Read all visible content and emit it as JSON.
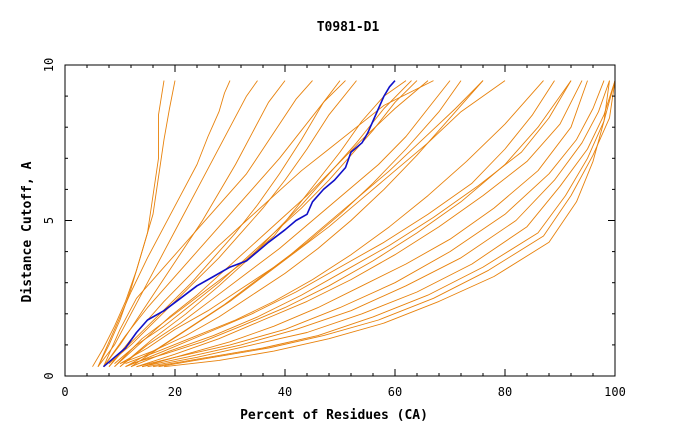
{
  "chart_data": {
    "type": "line",
    "title": "T0981-D1",
    "xlabel": "Percent of Residues (CA)",
    "ylabel": "Distance Cutoff, A",
    "xlim": [
      0,
      100
    ],
    "ylim": [
      0,
      10
    ],
    "xticks": [
      "0",
      "20",
      "40",
      "60",
      "80",
      "100"
    ],
    "yticks": [
      "0",
      "5",
      "10"
    ],
    "grid": false,
    "colors": {
      "models": "#e8820c",
      "highlight": "#1010c8"
    },
    "series": [
      {
        "color": "#1010c8",
        "highlight": true,
        "x": [
          7,
          9,
          11,
          13,
          15,
          18,
          21,
          24,
          27,
          30,
          33,
          35,
          37,
          40,
          42,
          44,
          45,
          47,
          49,
          51,
          52,
          54,
          55,
          56,
          57,
          58,
          59,
          60
        ],
        "y": [
          0.3,
          0.6,
          0.9,
          1.4,
          1.8,
          2.1,
          2.5,
          2.9,
          3.2,
          3.5,
          3.7,
          4.0,
          4.3,
          4.7,
          5.0,
          5.2,
          5.6,
          6.0,
          6.3,
          6.7,
          7.2,
          7.5,
          7.8,
          8.2,
          8.6,
          9.0,
          9.3,
          9.5
        ]
      },
      {
        "color": "#e8820c",
        "x": [
          5,
          7,
          9,
          11,
          13,
          15,
          16,
          17,
          17,
          18
        ],
        "y": [
          0.3,
          0.9,
          1.6,
          2.4,
          3.4,
          4.6,
          5.8,
          7.0,
          8.4,
          9.5
        ]
      },
      {
        "color": "#e8820c",
        "x": [
          6,
          8,
          10,
          12,
          14,
          16,
          17,
          18,
          19,
          20
        ],
        "y": [
          0.3,
          1.0,
          1.8,
          2.8,
          4.0,
          5.2,
          6.4,
          7.6,
          8.6,
          9.5
        ]
      },
      {
        "color": "#e8820c",
        "x": [
          6,
          9,
          12,
          15,
          18,
          21,
          24,
          27,
          30,
          33,
          35
        ],
        "y": [
          0.3,
          1.0,
          2.0,
          3.0,
          4.0,
          5.0,
          6.0,
          7.0,
          8.0,
          9.0,
          9.5
        ]
      },
      {
        "color": "#e8820c",
        "x": [
          7,
          10,
          13,
          16,
          19,
          22,
          25,
          28,
          31,
          34,
          37,
          40
        ],
        "y": [
          0.3,
          1.0,
          1.8,
          2.6,
          3.4,
          4.2,
          5.0,
          5.9,
          6.8,
          7.8,
          8.8,
          9.5
        ]
      },
      {
        "color": "#e8820c",
        "x": [
          8,
          11,
          15,
          19,
          23,
          27,
          31,
          35,
          39,
          43,
          47,
          50
        ],
        "y": [
          0.3,
          0.9,
          1.6,
          2.3,
          3.0,
          3.8,
          4.6,
          5.5,
          6.5,
          7.6,
          8.8,
          9.5
        ]
      },
      {
        "color": "#e8820c",
        "x": [
          8,
          12,
          16,
          20,
          24,
          28,
          32,
          36,
          40,
          44,
          48,
          53
        ],
        "y": [
          0.4,
          1.0,
          1.7,
          2.4,
          3.1,
          3.8,
          4.6,
          5.4,
          6.3,
          7.3,
          8.4,
          9.5
        ]
      },
      {
        "color": "#e8820c",
        "x": [
          9,
          13,
          18,
          23,
          28,
          33,
          38,
          43,
          48,
          53,
          58,
          63
        ],
        "y": [
          0.4,
          1.0,
          1.6,
          2.3,
          3.0,
          3.8,
          4.6,
          5.5,
          6.5,
          7.5,
          8.6,
          9.5
        ]
      },
      {
        "color": "#e8820c",
        "x": [
          10,
          15,
          20,
          26,
          32,
          38,
          44,
          50,
          56,
          62,
          68,
          72
        ],
        "y": [
          0.4,
          0.9,
          1.5,
          2.1,
          2.8,
          3.5,
          4.3,
          5.2,
          6.2,
          7.3,
          8.5,
          9.5
        ]
      },
      {
        "color": "#e8820c",
        "x": [
          10,
          16,
          22,
          28,
          34,
          40,
          46,
          52,
          58,
          64,
          70,
          76
        ],
        "y": [
          0.4,
          0.8,
          1.3,
          1.9,
          2.6,
          3.3,
          4.1,
          5.0,
          6.0,
          7.1,
          8.3,
          9.5
        ]
      },
      {
        "color": "#e8820c",
        "x": [
          11,
          17,
          24,
          31,
          38,
          45,
          52,
          59,
          66,
          73,
          80,
          87
        ],
        "y": [
          0.4,
          0.8,
          1.3,
          1.8,
          2.4,
          3.1,
          3.9,
          4.8,
          5.8,
          6.9,
          8.1,
          9.5
        ]
      },
      {
        "color": "#e8820c",
        "x": [
          12,
          18,
          25,
          32,
          40,
          48,
          56,
          64,
          72,
          80,
          86,
          92
        ],
        "y": [
          0.4,
          0.7,
          1.1,
          1.6,
          2.2,
          2.9,
          3.7,
          4.6,
          5.6,
          6.8,
          8.0,
          9.5
        ]
      },
      {
        "color": "#e8820c",
        "x": [
          9,
          14,
          20,
          26,
          32,
          38,
          42,
          46,
          50,
          54,
          58,
          62
        ],
        "y": [
          0.3,
          1.2,
          2.0,
          2.8,
          3.6,
          4.5,
          5.4,
          6.3,
          7.2,
          8.2,
          9.0,
          9.5
        ]
      },
      {
        "color": "#e8820c",
        "x": [
          9,
          14,
          19,
          24,
          29,
          34,
          39,
          44,
          49,
          54,
          60,
          66
        ],
        "y": [
          0.3,
          1.1,
          1.9,
          2.6,
          3.4,
          4.2,
          5.0,
          5.8,
          6.7,
          7.6,
          8.6,
          9.5
        ]
      },
      {
        "color": "#e8820c",
        "x": [
          8,
          13,
          18,
          23,
          28,
          33,
          38,
          43,
          48,
          53,
          58,
          67
        ],
        "y": [
          0.3,
          1.4,
          2.4,
          3.3,
          4.2,
          5.0,
          5.8,
          6.6,
          7.3,
          8.0,
          8.7,
          9.5
        ]
      },
      {
        "color": "#e8820c",
        "x": [
          13,
          20,
          30,
          40,
          50,
          60,
          70,
          80,
          88,
          93,
          96,
          98
        ],
        "y": [
          0.3,
          0.6,
          1.0,
          1.5,
          2.2,
          3.0,
          4.0,
          5.2,
          6.5,
          7.6,
          8.6,
          9.5
        ]
      },
      {
        "color": "#e8820c",
        "x": [
          14,
          22,
          32,
          42,
          52,
          62,
          72,
          82,
          89,
          94,
          97,
          99
        ],
        "y": [
          0.3,
          0.6,
          1.0,
          1.5,
          2.1,
          2.9,
          3.8,
          5.0,
          6.3,
          7.5,
          8.5,
          9.5
        ]
      },
      {
        "color": "#e8820c",
        "x": [
          15,
          24,
          34,
          44,
          54,
          64,
          74,
          84,
          90,
          95,
          98,
          100
        ],
        "y": [
          0.3,
          0.6,
          1.0,
          1.4,
          2.0,
          2.7,
          3.6,
          4.8,
          6.1,
          7.3,
          8.4,
          9.5
        ]
      },
      {
        "color": "#e8820c",
        "x": [
          16,
          26,
          36,
          46,
          56,
          66,
          76,
          86,
          91,
          95,
          98,
          100
        ],
        "y": [
          0.3,
          0.6,
          0.9,
          1.3,
          1.9,
          2.6,
          3.5,
          4.6,
          5.8,
          7.0,
          8.2,
          9.5
        ]
      },
      {
        "color": "#e8820c",
        "x": [
          14,
          22,
          30,
          38,
          46,
          54,
          62,
          70,
          78,
          86,
          92,
          95
        ],
        "y": [
          0.3,
          0.7,
          1.1,
          1.6,
          2.2,
          2.9,
          3.6,
          4.4,
          5.4,
          6.6,
          8.0,
          9.5
        ]
      },
      {
        "color": "#e8820c",
        "x": [
          13,
          20,
          28,
          36,
          44,
          52,
          60,
          68,
          76,
          84,
          90,
          94
        ],
        "y": [
          0.3,
          0.7,
          1.2,
          1.8,
          2.4,
          3.1,
          3.9,
          4.8,
          5.8,
          6.9,
          8.1,
          9.5
        ]
      },
      {
        "color": "#e8820c",
        "x": [
          12,
          19,
          27,
          35,
          43,
          51,
          59,
          67,
          75,
          83,
          88,
          92
        ],
        "y": [
          0.3,
          0.8,
          1.3,
          1.9,
          2.6,
          3.4,
          4.2,
          5.1,
          6.1,
          7.2,
          8.3,
          9.5
        ]
      },
      {
        "color": "#e8820c",
        "x": [
          17,
          27,
          37,
          47,
          57,
          67,
          77,
          87,
          92,
          96,
          99,
          100
        ],
        "y": [
          0.3,
          0.6,
          0.9,
          1.3,
          1.8,
          2.5,
          3.4,
          4.5,
          5.8,
          7.1,
          8.3,
          9.5
        ]
      },
      {
        "color": "#e8820c",
        "x": [
          18,
          28,
          38,
          48,
          58,
          68,
          78,
          88,
          93,
          96,
          98,
          99
        ],
        "y": [
          0.3,
          0.5,
          0.8,
          1.2,
          1.7,
          2.4,
          3.2,
          4.3,
          5.6,
          6.9,
          8.2,
          9.5
        ]
      },
      {
        "color": "#e8820c",
        "x": [
          11,
          17,
          23,
          29,
          35,
          41,
          47,
          53,
          59,
          65,
          71,
          76
        ],
        "y": [
          0.3,
          0.9,
          1.6,
          2.3,
          3.1,
          3.9,
          4.8,
          5.7,
          6.6,
          7.6,
          8.6,
          9.5
        ]
      },
      {
        "color": "#e8820c",
        "x": [
          7,
          11,
          15,
          19,
          23,
          27,
          31,
          35,
          39,
          43,
          47,
          51
        ],
        "y": [
          0.3,
          1.3,
          2.2,
          3.0,
          3.8,
          4.6,
          5.4,
          6.2,
          7.0,
          7.9,
          8.8,
          9.5
        ]
      },
      {
        "color": "#e8820c",
        "x": [
          7,
          10,
          13,
          17,
          21,
          25,
          29,
          33,
          36,
          39,
          42,
          45
        ],
        "y": [
          0.3,
          1.5,
          2.5,
          3.3,
          4.1,
          4.9,
          5.7,
          6.5,
          7.3,
          8.1,
          8.9,
          9.5
        ]
      },
      {
        "color": "#e8820c",
        "x": [
          6,
          9,
          12,
          15,
          18,
          21,
          24,
          26,
          28,
          29,
          30
        ],
        "y": [
          0.3,
          1.5,
          2.7,
          3.8,
          4.8,
          5.8,
          6.8,
          7.7,
          8.5,
          9.1,
          9.5
        ]
      },
      {
        "color": "#e8820c",
        "x": [
          10,
          16,
          22,
          28,
          33,
          38,
          43,
          48,
          52,
          56,
          60,
          64
        ],
        "y": [
          0.3,
          1.2,
          2.0,
          2.9,
          3.7,
          4.6,
          5.4,
          6.3,
          7.1,
          7.9,
          8.8,
          9.5
        ]
      },
      {
        "color": "#e8820c",
        "x": [
          12,
          18,
          24,
          30,
          36,
          42,
          48,
          54,
          60,
          66,
          72,
          80
        ],
        "y": [
          0.3,
          1.0,
          1.7,
          2.4,
          3.2,
          4.0,
          4.8,
          5.7,
          6.6,
          7.5,
          8.5,
          9.5
        ]
      },
      {
        "color": "#e8820c",
        "x": [
          11,
          18,
          26,
          34,
          42,
          50,
          58,
          66,
          74,
          80,
          85,
          89
        ],
        "y": [
          0.3,
          0.8,
          1.4,
          2.0,
          2.7,
          3.5,
          4.3,
          5.2,
          6.2,
          7.3,
          8.4,
          9.5
        ]
      },
      {
        "color": "#e8820c",
        "x": [
          10,
          15,
          21,
          27,
          33,
          39,
          45,
          51,
          57,
          62,
          66,
          70
        ],
        "y": [
          0.3,
          1.0,
          1.7,
          2.5,
          3.3,
          4.1,
          5.0,
          5.9,
          6.8,
          7.7,
          8.6,
          9.5
        ]
      }
    ]
  }
}
